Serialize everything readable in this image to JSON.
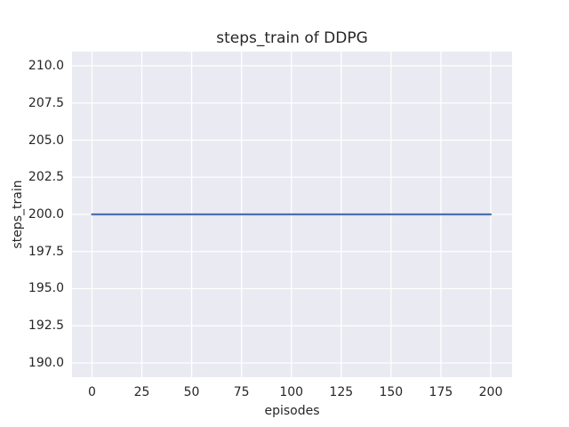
{
  "chart_data": {
    "type": "line",
    "title": "steps_train of DDPG",
    "xlabel": "episodes",
    "ylabel": "steps_train",
    "xlim": [
      -10.0,
      210.7
    ],
    "ylim": [
      189.04,
      210.96
    ],
    "x_ticks": [
      0,
      25,
      50,
      75,
      100,
      125,
      150,
      175,
      200
    ],
    "x_tick_labels": [
      "0",
      "25",
      "50",
      "75",
      "100",
      "125",
      "150",
      "175",
      "200"
    ],
    "y_ticks": [
      190.0,
      192.5,
      195.0,
      197.5,
      200.0,
      202.5,
      205.0,
      207.5,
      210.0
    ],
    "y_tick_labels": [
      "190.0",
      "192.5",
      "195.0",
      "197.5",
      "200.0",
      "202.5",
      "205.0",
      "207.5",
      "210.0"
    ],
    "grid": true,
    "legend": false,
    "series": [
      {
        "name": "steps_train",
        "color": "#4c72b0",
        "x": [
          0,
          200
        ],
        "y": [
          200,
          200
        ]
      }
    ],
    "styles": {
      "figure_bg": "#ffffff",
      "plot_bg": "#eaeaf2",
      "grid_color": "#ffffff",
      "text_color": "#262626"
    }
  }
}
